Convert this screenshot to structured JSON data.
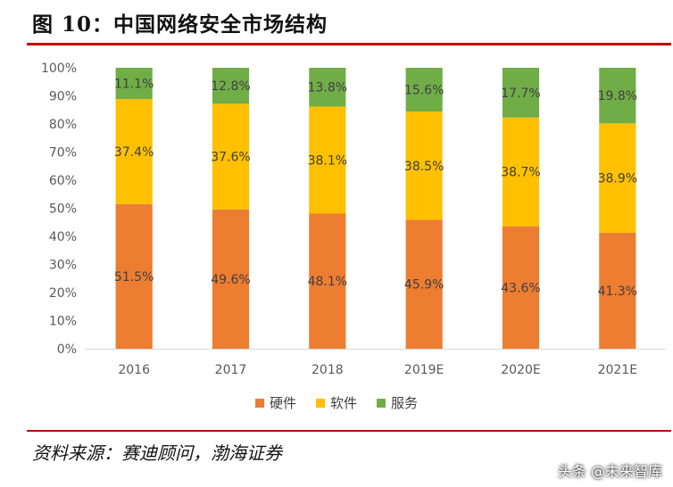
{
  "figure": {
    "title": "图 10：中国网络安全市场结构",
    "source": "资料来源：赛迪顾问，渤海证券",
    "watermark": "头条 @未来智库"
  },
  "chart_data": {
    "type": "bar",
    "stacked": true,
    "categories": [
      "2016",
      "2017",
      "2018",
      "2019E",
      "2020E",
      "2021E"
    ],
    "series": [
      {
        "name": "硬件",
        "color": "#ED7D31",
        "values": [
          51.5,
          49.6,
          48.1,
          45.9,
          43.6,
          41.3
        ],
        "labels": [
          "51.5%",
          "49.6%",
          "48.1%",
          "45.9%",
          "43.6%",
          "41.3%"
        ]
      },
      {
        "name": "软件",
        "color": "#FFC000",
        "values": [
          37.4,
          37.6,
          38.1,
          38.5,
          38.7,
          38.9
        ],
        "labels": [
          "37.4%",
          "37.6%",
          "38.1%",
          "38.5%",
          "38.7%",
          "38.9%"
        ]
      },
      {
        "name": "服务",
        "color": "#70AD47",
        "values": [
          11.1,
          12.8,
          13.8,
          15.6,
          17.7,
          19.8
        ],
        "labels": [
          "11.1%",
          "12.8%",
          "13.8%",
          "15.6%",
          "17.7%",
          "19.8%"
        ]
      }
    ],
    "y_ticks": [
      "0%",
      "10%",
      "20%",
      "30%",
      "40%",
      "50%",
      "60%",
      "70%",
      "80%",
      "90%",
      "100%"
    ],
    "ylim": [
      0,
      100
    ],
    "grid": false,
    "legend_position": "bottom"
  }
}
